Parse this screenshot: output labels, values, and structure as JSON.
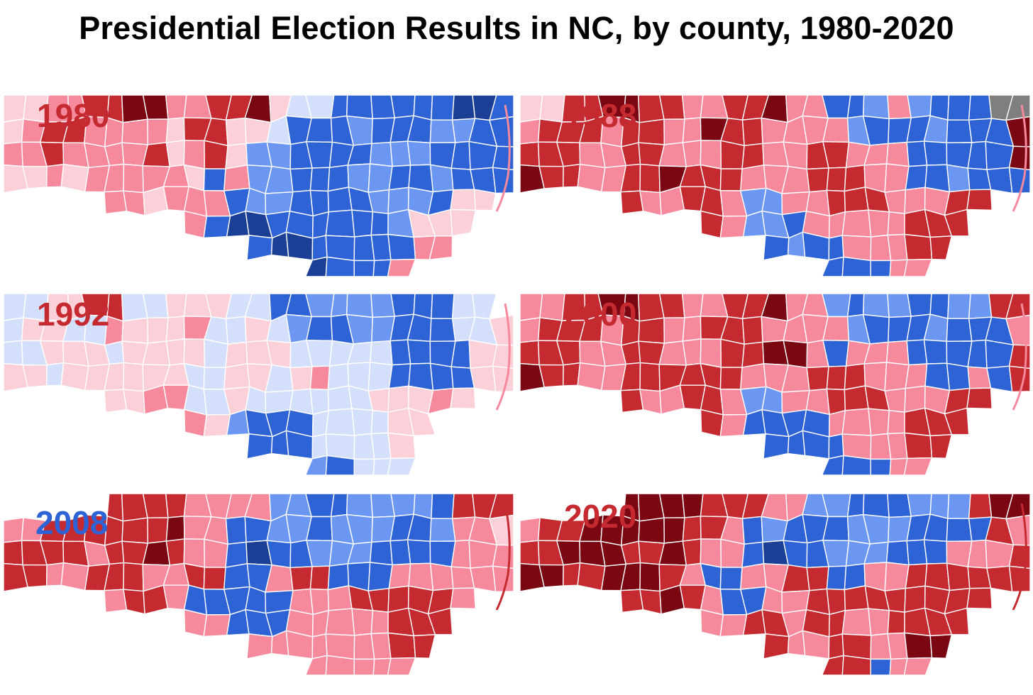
{
  "title": "Presidential Election Results in NC, by county, 1980-2020",
  "colors": {
    "dem_strong": "#1b3f94",
    "dem_mid": "#2e63d6",
    "dem_light": "#6b97f2",
    "dem_faint": "#d4e0fb",
    "rep_faint": "#fbd0d8",
    "rep_light": "#f6899b",
    "rep_mid": "#c42a30",
    "rep_strong": "#7a0712",
    "other": "#7f7f7f"
  },
  "maps": [
    {
      "year": "1980",
      "label_color": "#c42a30",
      "rows": [
        "FFLLMMHHLLMMHFEEBBBBBBAAB",
        "FLMMLLLLFMMFFEBBBCBBBCCBB",
        "LLMLLLLMFLMFCCBBBBCCCBBBB",
        "FFLFLLLLLFBLCCBBBCCBBCBBB",
        "-----LLFLLLBCCBBBBCCCBFF-",
        "---------LBAABBBBBBCFFF--",
        "------------BAABBBBBLL---",
        "---------------ABBBL-----"
      ]
    },
    {
      "year": "1988",
      "label_color": "#c42a30",
      "rows": [
        "FFMMHHMMLLMMHLLBBCLCBBBGG",
        "LMMMLMMLLHMMLLLLCBBBCBBBH",
        "MMMLLMMLLLMMLLMMLLLBBBBBH",
        "HMMLLMMHMMMLLLMMMLLBBCBBB",
        "-----MLLMMLCCLLMMMLLLMM--",
        "---------MLCCBLLLLLMMM---",
        "------------BCBBLLLMM----",
        "---------------BBBLL-----"
      ]
    },
    {
      "year": "1992",
      "label_color": "#c42a30",
      "rows": [
        "EEFFMMEEFFFEEBBCCCCBBBEE-",
        "EFFEELFFFLEEFECBBCCBBBEEF",
        "EEFFFEFFFFEFFFEEEEEBBBBFF",
        "FFEFFFFFFEEFFEFLEEEBBBBFF",
        "-----FFLLEEFEEEEEEFFFLF--",
        "---------LFCBBBEEEEFF----",
        "------------BBBEEEEF-----",
        "---------------CBEEE-----"
      ]
    },
    {
      "year": "2000",
      "label_color": "#c42a30",
      "rows": [
        "LLMMHHMMLLMMHLLCBCCBBCCMM",
        "LMMMLMMLLMMMLLLLCBBBCBBBL",
        "MMMLLMMLLLMMHHLBLLLBBBBBM",
        "HMMLLMMMMMMLLLMMMLLLBBLBM",
        "-----MLLMMLCCLLMMMLLLMM--",
        "---------MLBBBBLLLLMMM---",
        "------------BBBBLLLMM----",
        "---------------BBBLL-----"
      ]
    },
    {
      "year": "2008",
      "label_color": "#2e63d6",
      "rows": [
        "-----MMMMLLLLCCBBCCCCBMMM",
        "LLMMMMMMHLLBBCCBCCCBBCLLF",
        "MMMMLMMHMLLBABBCCCBBBBLLL",
        "MMLLMMMLLMMBBLMMBBBLLLLLL",
        "-----LMMLBBBBBLLLMMMMML--",
        "---------LLBBBLLLLLMMM---",
        "------------LLLLLLLMM----",
        "---------------LLLLL-----"
      ]
    },
    {
      "year": "2020",
      "label_color": "#c42a30",
      "rows": [
        "-----HHHHMMMLLCCBBBCCCMHH",
        "LMMHHHHHMMLBCBBBCCCBBBBML",
        "MMHHHMMHMLLBABBCCCBBBLLLM",
        "HHMMHHHMLBBLLMMBBLLMMMMMM",
        "-----MMHMLBBLLMMMMMMMMM--",
        "---------LLMMLMMLLMMMM---",
        "------------MLLMMLLHH----",
        "---------------MMBLL-----"
      ]
    }
  ]
}
